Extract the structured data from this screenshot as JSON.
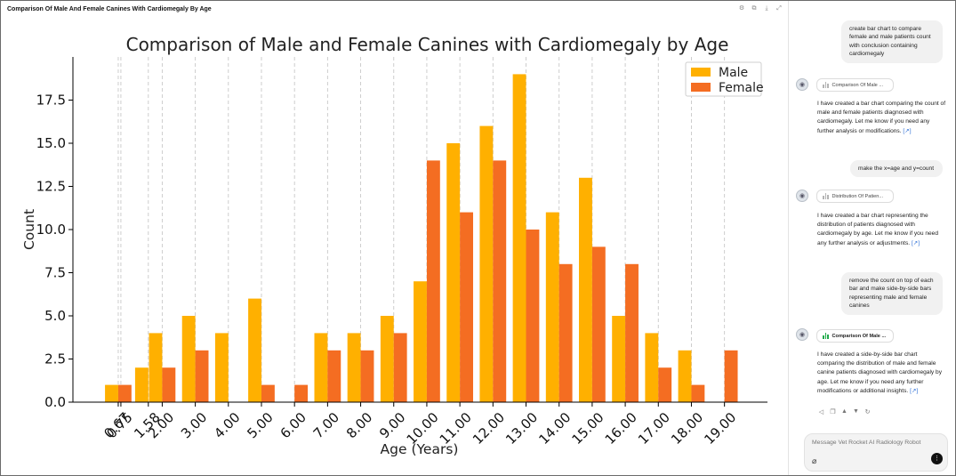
{
  "panel": {
    "title": "Comparison Of Male And Female Canines With Cardiomegaly By Age",
    "tools": [
      {
        "icon": "settings-icon",
        "glyph": "⚙"
      },
      {
        "icon": "copy-icon",
        "glyph": "⧉"
      },
      {
        "icon": "download-icon",
        "glyph": "⤓"
      },
      {
        "icon": "expand-icon",
        "glyph": "⤢"
      }
    ]
  },
  "chart_data": {
    "type": "bar",
    "title": "Comparison of Male and Female Canines with Cardiomegaly by Age",
    "xlabel": "Age (Years)",
    "ylabel": "Count",
    "ylim": [
      0,
      20
    ],
    "yticks": [
      "0.0",
      "2.5",
      "5.0",
      "7.5",
      "10.0",
      "12.5",
      "15.0",
      "17.5"
    ],
    "grid": "vertical dashed",
    "legend": "top-right",
    "x": [
      0.67,
      0.75,
      1.58,
      2.0,
      3.0,
      4.0,
      5.0,
      6.0,
      7.0,
      8.0,
      9.0,
      10.0,
      11.0,
      12.0,
      13.0,
      14.0,
      15.0,
      16.0,
      17.0,
      18.0,
      19.0
    ],
    "xtick_labels": [
      "0.67",
      "0.75",
      "1.58",
      "2.00",
      "3.00",
      "4.00",
      "5.00",
      "6.00",
      "7.00",
      "8.00",
      "9.00",
      "10.00",
      "11.00",
      "12.00",
      "13.00",
      "14.00",
      "15.00",
      "16.00",
      "17.00",
      "18.00",
      "19.00"
    ],
    "series": [
      {
        "name": "Male",
        "color": "#ffb000",
        "values": [
          1,
          0,
          2,
          4,
          5,
          4,
          6,
          0,
          4,
          4,
          5,
          7,
          15,
          16,
          19,
          11,
          13,
          5,
          4,
          3,
          0
        ]
      },
      {
        "name": "Female",
        "color": "#f46d22",
        "values": [
          1,
          0,
          0,
          2,
          3,
          0,
          1,
          1,
          3,
          3,
          4,
          14,
          11,
          14,
          10,
          8,
          9,
          8,
          2,
          1,
          3
        ]
      }
    ]
  },
  "chat": {
    "messages": [
      {
        "role": "user",
        "text": "create bar chart to compare female and male patients count with conclusion containing cardiomegaly"
      },
      {
        "role": "assistant",
        "chip": "Comparison Of Male ...",
        "text": "I have created a bar chart comparing the count of male and female patients diagnosed with cardiomegaly. Let me know if you need any further analysis or modifications.",
        "ref": "[↗]"
      },
      {
        "role": "user",
        "text": "make the x=age and y=count"
      },
      {
        "role": "assistant",
        "chip": "Distribution Of Patien...",
        "text": "I have created a bar chart representing the distribution of patients diagnosed with cardiomegaly by age. Let me know if you need any further analysis or adjustments.",
        "ref": "[↗]"
      },
      {
        "role": "user",
        "text": "remove the count on top of each bar and make side-by-side bars representing male and female canines"
      },
      {
        "role": "assistant",
        "chip": "Comparison Of Male ...",
        "text": "I have created a side-by-side bar chart comparing the distribution of male and female canine patients diagnosed with cardiomegaly by age. Let me know if you need any further modifications or additional insights.",
        "ref": "[↗]"
      }
    ],
    "actions": [
      {
        "icon": "speaker-icon",
        "glyph": "◁"
      },
      {
        "icon": "copy-icon",
        "glyph": "❐"
      },
      {
        "icon": "thumbs-up-icon",
        "glyph": "▲"
      },
      {
        "icon": "thumbs-down-icon",
        "glyph": "▼"
      },
      {
        "icon": "regenerate-icon",
        "glyph": "↻"
      }
    ],
    "composer": {
      "placeholder": "Message Vet Rocket AI Radiology Robot"
    }
  }
}
